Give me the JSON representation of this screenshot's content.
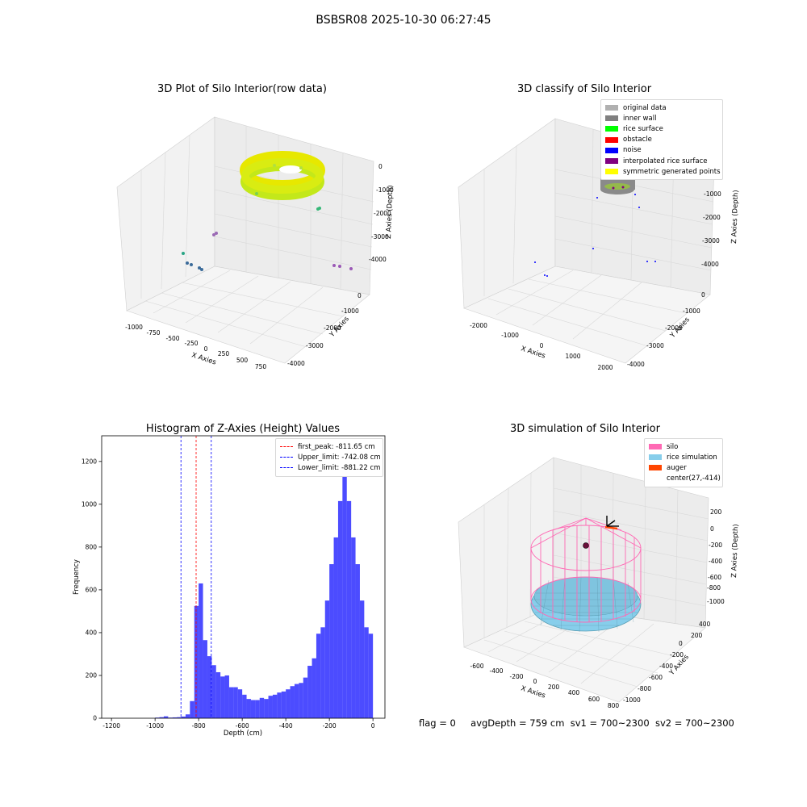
{
  "suptitle": "BSBSR08 2025-10-30 06:27:45",
  "panels": {
    "raw": {
      "title": "3D Plot of Silo Interior(row data)",
      "xlabel": "X Axies",
      "ylabel": "Y Axies",
      "zlabel": "Z Axies (Depth)",
      "xticks": [
        "-1000",
        "-750",
        "-500",
        "-250",
        "0",
        "250",
        "500",
        "750"
      ],
      "yticks": [
        "0",
        "-1000",
        "-2000",
        "-3000",
        "-4000"
      ],
      "zticks": [
        "0",
        "-1000",
        "-2000",
        "-3000",
        "-4000"
      ]
    },
    "classify": {
      "title": "3D classify of Silo Interior",
      "xlabel": "X Axies",
      "ylabel": "Y Axies",
      "zlabel": "Z Axies (Depth)",
      "xticks": [
        "-2000",
        "-1000",
        "0",
        "1000",
        "2000"
      ],
      "yticks": [
        "0",
        "-1000",
        "-2000",
        "-3000",
        "-4000"
      ],
      "zticks": [
        "-1000",
        "-2000",
        "-3000",
        "-4000"
      ],
      "legend": [
        {
          "label": "original data",
          "color": "#b0b0b0"
        },
        {
          "label": "inner wall",
          "color": "#808080"
        },
        {
          "label": "rice surface",
          "color": "#00ff00"
        },
        {
          "label": "obstacle",
          "color": "#ff0000"
        },
        {
          "label": "noise",
          "color": "#0000ff"
        },
        {
          "label": "interpolated rice surface",
          "color": "#800080"
        },
        {
          "label": "symmetric generated points",
          "color": "#ffff00"
        }
      ]
    },
    "simulation": {
      "title": "3D simulation of Silo Interior",
      "xlabel": "X Axies",
      "ylabel": "Y Axies",
      "zlabel": "Z Axies (Depth)",
      "xticks": [
        "-600",
        "-400",
        "-200",
        "0",
        "200",
        "400",
        "600",
        "800"
      ],
      "yticks": [
        "400",
        "200",
        "0",
        "-200",
        "-400",
        "-600",
        "-800",
        "-1000"
      ],
      "zticks": [
        "200",
        "0",
        "-200",
        "-400",
        "-600",
        "-800",
        "-1000"
      ],
      "legend": [
        {
          "label": "silo",
          "color": "#ff69b4"
        },
        {
          "label": "rice simulation",
          "color": "#87ceeb"
        },
        {
          "label": "auger",
          "color": "#ff4500"
        },
        {
          "label": "center(27,-414)",
          "color": ""
        }
      ]
    }
  },
  "chart_data": {
    "type": "bar",
    "title": "Histogram of Z-Axies (Height) Values",
    "xlabel": "Depth (cm)",
    "ylabel": "Frequency",
    "xlim": [
      -1245,
      55
    ],
    "ylim": [
      0,
      1320
    ],
    "xticks": [
      -1200,
      -1000,
      -800,
      -600,
      -400,
      -200,
      0
    ],
    "yticks": [
      0,
      200,
      400,
      600,
      800,
      1000,
      1200
    ],
    "bin_width": 20,
    "bar_color": "#0000ff",
    "bins_left": [
      -1000,
      -980,
      -960,
      -940,
      -920,
      -900,
      -880,
      -860,
      -840,
      -820,
      -800,
      -780,
      -760,
      -740,
      -720,
      -700,
      -680,
      -660,
      -640,
      -620,
      -600,
      -580,
      -560,
      -540,
      -520,
      -500,
      -480,
      -460,
      -440,
      -420,
      -400,
      -380,
      -360,
      -340,
      -320,
      -300,
      -280,
      -260,
      -240,
      -220,
      -200,
      -180,
      -160,
      -140,
      -120,
      -100,
      -80,
      -60,
      -40,
      -20
    ],
    "values": [
      3,
      5,
      9,
      3,
      4,
      5,
      8,
      18,
      80,
      525,
      630,
      365,
      290,
      248,
      215,
      195,
      200,
      145,
      145,
      135,
      110,
      90,
      85,
      85,
      95,
      90,
      105,
      110,
      120,
      125,
      135,
      150,
      160,
      165,
      190,
      245,
      280,
      395,
      425,
      550,
      720,
      845,
      1015,
      1250,
      1015,
      845,
      720,
      550,
      425,
      395
    ],
    "vlines": [
      {
        "label": "first_peak: -811.65 cm",
        "x": -811.65,
        "color": "#ff0000"
      },
      {
        "label": "Upper_limit: -742.08 cm",
        "x": -742.08,
        "color": "#0000ff"
      },
      {
        "label": "Lower_limit: -881.22 cm",
        "x": -881.22,
        "color": "#0000ff"
      }
    ]
  },
  "footer": {
    "flag": "flag = 0",
    "avgDepth": "avgDepth = 759 cm",
    "sv1": "sv1 = 700~2300",
    "sv2": "sv2 = 700~2300"
  }
}
